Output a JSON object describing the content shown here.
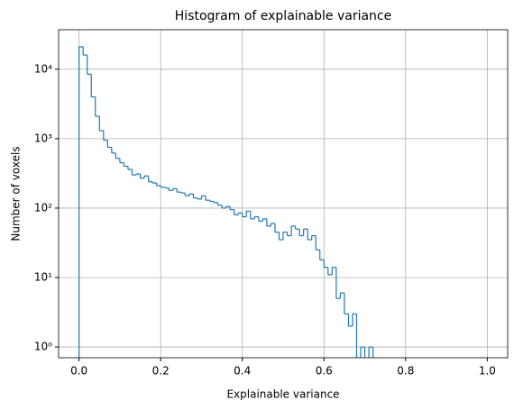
{
  "chart_data": {
    "type": "histogram",
    "title": "Histogram of explainable variance",
    "x_label": "Explainable variance",
    "y_label": "Number of voxels",
    "color": "#1f77b4",
    "log_scale_y": true,
    "grid": true,
    "bins": [
      0,
      0.01,
      0.02,
      0.03,
      0.04,
      0.05,
      0.06,
      0.07,
      0.08,
      0.09,
      0.1,
      0.11,
      0.12,
      0.13,
      0.14,
      0.15,
      0.16,
      0.17,
      0.18,
      0.19,
      0.2,
      0.21,
      0.22,
      0.23,
      0.24,
      0.25,
      0.26,
      0.27,
      0.28,
      0.29,
      0.3,
      0.31,
      0.32,
      0.33,
      0.34,
      0.35,
      0.36,
      0.37,
      0.38,
      0.39,
      0.4,
      0.41,
      0.42,
      0.43,
      0.44,
      0.45,
      0.46,
      0.47,
      0.48,
      0.49,
      0.5,
      0.51,
      0.52,
      0.53,
      0.54,
      0.55,
      0.56,
      0.57,
      0.58,
      0.59,
      0.6,
      0.61,
      0.62,
      0.63,
      0.64,
      0.65,
      0.66,
      0.67,
      0.68,
      0.69,
      0.7,
      0.71,
      0.72,
      0.73,
      0.74,
      0.75,
      0.76,
      0.77,
      0.78,
      0.79,
      0.8,
      0.81,
      0.82,
      0.83,
      0.84,
      0.85,
      0.86,
      0.87,
      0.88,
      0.89,
      0.9,
      0.91,
      0.92,
      0.93,
      0.94,
      0.95,
      0.96,
      0.97,
      0.98,
      0.99,
      1
    ],
    "counts": [
      21000,
      16000,
      8500,
      4000,
      2100,
      1300,
      950,
      750,
      620,
      520,
      450,
      400,
      360,
      300,
      310,
      270,
      290,
      240,
      230,
      210,
      200,
      195,
      180,
      190,
      170,
      165,
      150,
      160,
      140,
      135,
      150,
      130,
      125,
      120,
      110,
      100,
      105,
      95,
      80,
      85,
      75,
      90,
      70,
      75,
      65,
      70,
      55,
      60,
      45,
      35,
      45,
      40,
      55,
      50,
      40,
      50,
      35,
      40,
      25,
      18,
      14,
      11,
      14,
      5,
      6,
      3,
      2,
      3,
      0,
      1,
      0,
      1,
      0,
      0,
      0,
      0,
      0,
      0,
      0,
      0,
      0,
      0,
      0,
      0,
      0,
      0,
      0,
      0,
      0,
      0,
      0,
      0,
      0,
      0,
      0,
      0,
      0,
      0,
      0,
      0
    ],
    "xlim": [
      -0.05,
      1.05
    ],
    "ylim": [
      0.7,
      37000
    ],
    "xticks": [
      {
        "value": 0,
        "label": "0.0"
      },
      0.2,
      0.4,
      0.6,
      0.8,
      {
        "value": 1,
        "label": "1.0"
      }
    ],
    "yticks": [
      {
        "value": 1,
        "label": "10⁰"
      },
      {
        "value": 10,
        "label": "10¹"
      },
      {
        "value": 100,
        "label": "10²"
      },
      {
        "value": 1000,
        "label": "10³"
      },
      {
        "value": 10000,
        "label": "10⁴"
      }
    ]
  }
}
